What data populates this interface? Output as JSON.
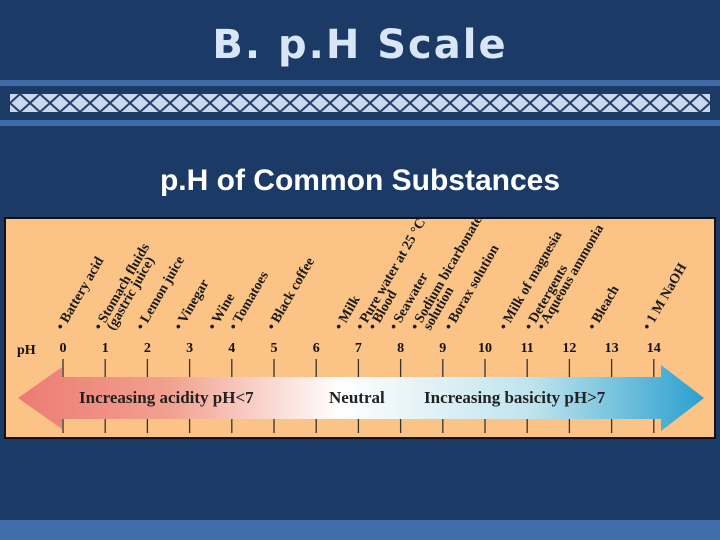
{
  "slide": {
    "title": "B. p.H Scale",
    "subtitle": "p.H of Common Substances"
  },
  "figure": {
    "ph_label": "pH",
    "scale_ticks": [
      "0",
      "1",
      "2",
      "3",
      "4",
      "5",
      "6",
      "7",
      "8",
      "9",
      "10",
      "11",
      "12",
      "13",
      "14"
    ],
    "substances": [
      {
        "name": "Battery acid",
        "ph": 0.0
      },
      {
        "name": "Stomach fluids",
        "ph": 0.9
      },
      {
        "name": "(gastric juice)",
        "ph": 1.2
      },
      {
        "name": "Lemon juice",
        "ph": 1.9
      },
      {
        "name": "Vinegar",
        "ph": 2.8
      },
      {
        "name": "Wine",
        "ph": 3.6
      },
      {
        "name": "Tomatoes",
        "ph": 4.1
      },
      {
        "name": "Black coffee",
        "ph": 5.0
      },
      {
        "name": "Milk",
        "ph": 6.6
      },
      {
        "name": "Pure water at 25 °C",
        "ph": 7.1
      },
      {
        "name": "Blood",
        "ph": 7.4
      },
      {
        "name": "Seawater",
        "ph": 7.9
      },
      {
        "name": "Sodium bicarbonate",
        "ph": 8.4
      },
      {
        "name": "solution",
        "ph": 8.7
      },
      {
        "name": "Borax solution",
        "ph": 9.2
      },
      {
        "name": "Milk of magnesia",
        "ph": 10.5
      },
      {
        "name": "Detergents",
        "ph": 11.1
      },
      {
        "name": "Aqueous ammonia",
        "ph": 11.4
      },
      {
        "name": "Bleach",
        "ph": 12.6
      },
      {
        "name": "1 M NaOH",
        "ph": 13.9
      }
    ],
    "arrow": {
      "acid_label": "Increasing acidity pH<7",
      "neutral_label": "Neutral",
      "base_label": "Increasing basicity pH>7"
    },
    "colors": {
      "panel": "#fbc385",
      "acid": "#ec7b74",
      "neutral": "#ffffff",
      "base": "#2aa0cf"
    }
  }
}
